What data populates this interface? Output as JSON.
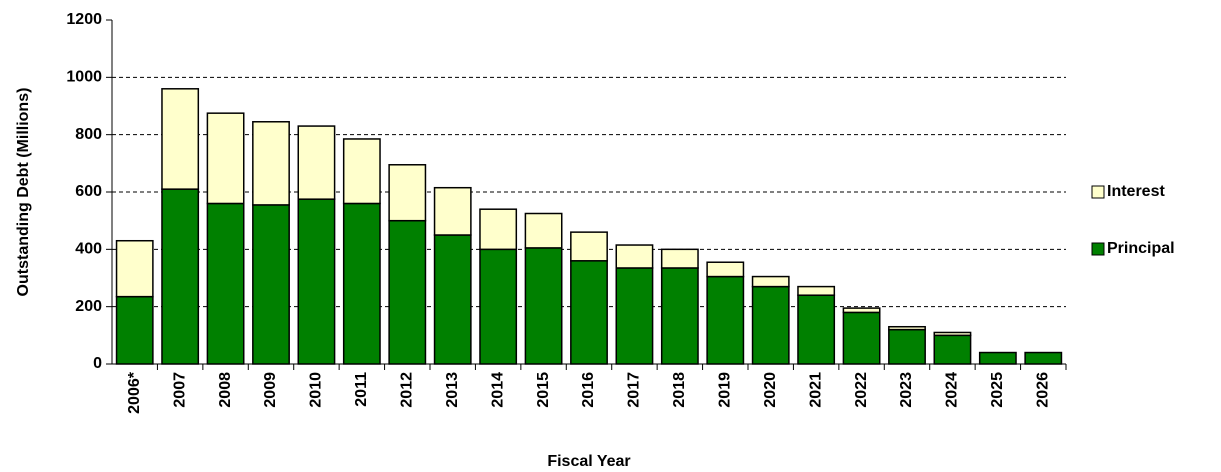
{
  "chart_data": {
    "type": "stacked_bar",
    "xlabel": "Fiscal Year",
    "ylabel": "Outstanding Debt (Millions)",
    "categories": [
      "2006*",
      "2007",
      "2008",
      "2009",
      "2010",
      "2011",
      "2012",
      "2013",
      "2014",
      "2015",
      "2016",
      "2017",
      "2018",
      "2019",
      "2020",
      "2021",
      "2022",
      "2023",
      "2024",
      "2025",
      "2026"
    ],
    "series": [
      {
        "name": "Principal",
        "color": "#008000",
        "values": [
          235,
          610,
          560,
          555,
          575,
          560,
          500,
          450,
          400,
          405,
          360,
          335,
          335,
          305,
          270,
          240,
          180,
          120,
          100,
          40,
          40
        ]
      },
      {
        "name": "Interest",
        "color": "#ffffcc",
        "values": [
          195,
          350,
          315,
          290,
          255,
          225,
          195,
          165,
          140,
          120,
          100,
          80,
          65,
          50,
          35,
          30,
          15,
          10,
          10,
          0,
          0
        ]
      }
    ],
    "ylim": [
      0,
      1200
    ],
    "yticks": [
      0,
      200,
      400,
      600,
      800,
      1000,
      1200
    ],
    "grid": true,
    "legend": "right"
  }
}
